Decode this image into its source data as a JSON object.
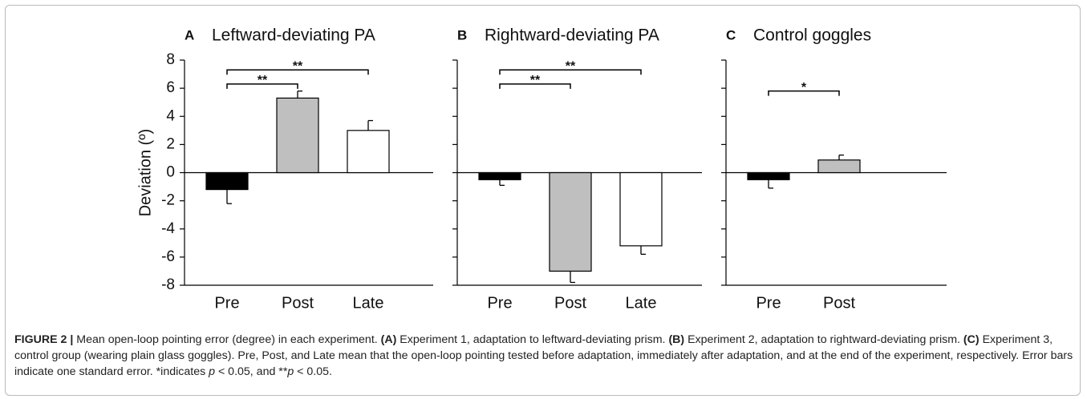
{
  "chart_data": [
    {
      "type": "bar",
      "label": "A",
      "title": "Leftward-deviating PA",
      "ylabel": "Deviation (º)",
      "categories": [
        "Pre",
        "Post",
        "Late"
      ],
      "values": [
        -1.2,
        5.3,
        3.0
      ],
      "errors": [
        1.0,
        0.5,
        0.7
      ],
      "colors": [
        "#000000",
        "#bfbfbf",
        "#ffffff"
      ],
      "ylim": [
        -8,
        8
      ],
      "yticks": [
        -8,
        -6,
        -4,
        -2,
        0,
        2,
        4,
        6,
        8
      ],
      "tick_labels": true,
      "annotations": [
        {
          "text": "**",
          "from": 0,
          "to": 1,
          "y": 6.3
        },
        {
          "text": "**",
          "from": 0,
          "to": 2,
          "y": 7.3
        }
      ]
    },
    {
      "type": "bar",
      "label": "B",
      "title": "Rightward-deviating PA",
      "categories": [
        "Pre",
        "Post",
        "Late"
      ],
      "values": [
        -0.5,
        -7.0,
        -5.2
      ],
      "errors": [
        0.4,
        0.8,
        0.6
      ],
      "colors": [
        "#000000",
        "#bfbfbf",
        "#ffffff"
      ],
      "ylim": [
        -8,
        8
      ],
      "yticks": [
        -8,
        -6,
        -4,
        -2,
        0,
        2,
        4,
        6,
        8
      ],
      "tick_labels": false,
      "annotations": [
        {
          "text": "**",
          "from": 0,
          "to": 1,
          "y": 6.3
        },
        {
          "text": "**",
          "from": 0,
          "to": 2,
          "y": 7.3
        }
      ]
    },
    {
      "type": "bar",
      "label": "C",
      "title": "Control goggles",
      "categories": [
        "Pre",
        "Post"
      ],
      "values": [
        -0.5,
        0.9
      ],
      "errors": [
        0.6,
        0.35
      ],
      "colors": [
        "#000000",
        "#bfbfbf"
      ],
      "ylim": [
        -8,
        8
      ],
      "yticks": [
        -8,
        -6,
        -4,
        -2,
        0,
        2,
        4,
        6,
        8
      ],
      "tick_labels": false,
      "annotations": [
        {
          "text": "*",
          "from": 0,
          "to": 1,
          "y": 5.8
        }
      ]
    }
  ],
  "caption": [
    {
      "text": "FIGURE 2 | ",
      "style": "b"
    },
    {
      "text": "Mean open-loop pointing error (degree) in each experiment. "
    },
    {
      "text": "(A)",
      "style": "b"
    },
    {
      "text": " Experiment 1, adaptation to leftward-deviating prism. "
    },
    {
      "text": "(B)",
      "style": "b"
    },
    {
      "text": " Experiment 2, adaptation to rightward-deviating prism. "
    },
    {
      "text": "(C)",
      "style": "b"
    },
    {
      "text": " Experiment 3, control group (wearing plain glass goggles). Pre, Post, and Late mean that the open-loop pointing tested before adaptation, immediately after adaptation, and at the end of the experiment, respectively. Error bars indicate one standard error. *indicates "
    },
    {
      "text": "p",
      "style": "i"
    },
    {
      "text": " < 0.05, and **"
    },
    {
      "text": "p",
      "style": "i"
    },
    {
      "text": " < 0.05."
    }
  ]
}
